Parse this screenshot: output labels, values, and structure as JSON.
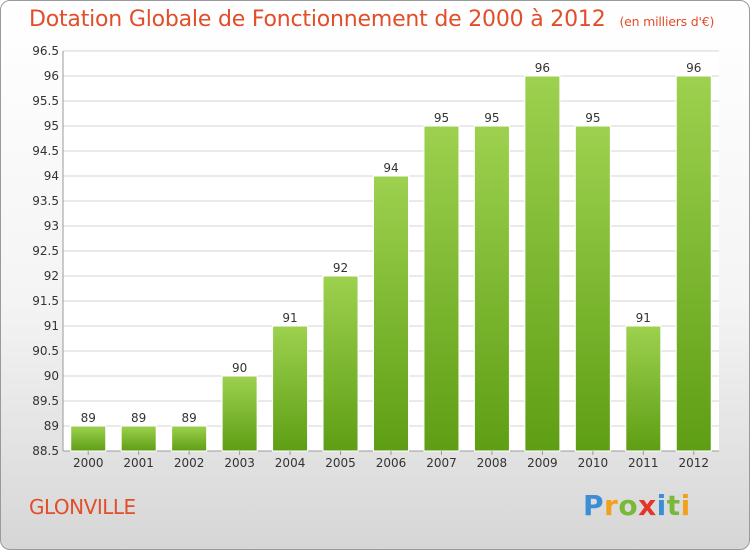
{
  "page": {
    "title": "Dotation Globale de Fonctionnement de 2000 à 2012",
    "unit": "(en milliers d'€)",
    "commune": "GLONVILLE",
    "logo": "Proxiti"
  },
  "chart_data": {
    "type": "bar",
    "title": "Dotation Globale de Fonctionnement de 2000 à 2012",
    "subtitle": "(en milliers d'€)",
    "xlabel": "",
    "ylabel": "",
    "categories": [
      "2000",
      "2001",
      "2002",
      "2003",
      "2004",
      "2005",
      "2006",
      "2007",
      "2008",
      "2009",
      "2010",
      "2011",
      "2012"
    ],
    "values": [
      89,
      89,
      89,
      90,
      91,
      92,
      94,
      95,
      95,
      96,
      95,
      91,
      96
    ],
    "data_labels": [
      "89",
      "89",
      "89",
      "90",
      "91",
      "92",
      "94",
      "95",
      "95",
      "96",
      "95",
      "91",
      "96"
    ],
    "ylim": [
      88.5,
      96.5
    ],
    "yticks": [
      "88.5",
      "89",
      "89.5",
      "90",
      "90.5",
      "91",
      "91.5",
      "92",
      "92.5",
      "93",
      "93.5",
      "94",
      "94.5",
      "95",
      "95.5",
      "96",
      "96.5"
    ],
    "grid": true,
    "legend": "none",
    "colors": {
      "bar_top": "#9dd14f",
      "bar_bottom": "#5e9e14",
      "grid": "#d4d4d4",
      "title": "#e24d2a"
    }
  }
}
